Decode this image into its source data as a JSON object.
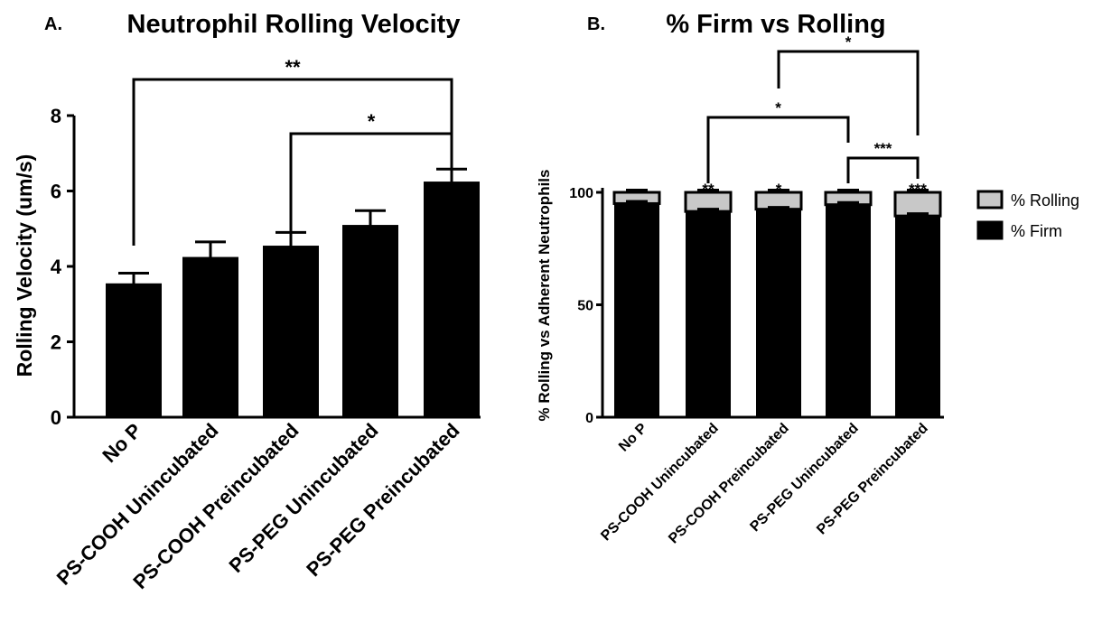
{
  "chart_data": [
    {
      "type": "bar",
      "panel_label": "A.",
      "title": "Neutrophil Rolling Velocity",
      "xlabel": "",
      "ylabel": "Rolling Velocity (um/s)",
      "ylim": [
        0,
        8
      ],
      "yticks": [
        "0",
        "2",
        "4",
        "6",
        "8"
      ],
      "categories": [
        "No P",
        "PS-COOH Unincubated",
        "PS-COOH Preincubated",
        "PS-PEG Unincubated",
        "PS-PEG Preincubated"
      ],
      "values": [
        3.55,
        4.25,
        4.55,
        5.1,
        6.25
      ],
      "errors": [
        0.27,
        0.4,
        0.35,
        0.38,
        0.33
      ],
      "bar_color": "#000000",
      "significance": [
        {
          "from": 0,
          "to": 4,
          "label": "**"
        },
        {
          "from": 2,
          "to": 4,
          "label": "*"
        }
      ]
    },
    {
      "type": "bar",
      "stacked": true,
      "panel_label": "B.",
      "title": "% Firm vs Rolling",
      "xlabel": "",
      "ylabel": "% Rolling vs Adherent Neutrophils",
      "ylim": [
        0,
        100
      ],
      "yticks": [
        "0",
        "50",
        "100"
      ],
      "categories": [
        "No P",
        "PS-COOH Unincubated",
        "PS-COOH Preincubated",
        "PS-PEG Unincubated",
        "PS-PEG Preincubated"
      ],
      "series": [
        {
          "name": "% Firm",
          "values": [
            95,
            91.5,
            92.5,
            94.5,
            89.5
          ],
          "errors": [
            1,
            1,
            0.8,
            1,
            1
          ],
          "color": "#000000"
        },
        {
          "name": "% Rolling",
          "values": [
            5,
            8.5,
            7.5,
            5.5,
            10.5
          ],
          "errors": [
            1,
            1,
            1,
            1,
            1
          ],
          "color": "#c8c8c8"
        }
      ],
      "legend_position": "right",
      "bar_labels": [
        "",
        "**",
        "*",
        "",
        "***"
      ],
      "significance": [
        {
          "from": 1,
          "to": 3,
          "label": "*"
        },
        {
          "from": 2,
          "to": 4,
          "label": "*"
        },
        {
          "from": 3,
          "to": 4,
          "label": "***"
        }
      ]
    }
  ]
}
